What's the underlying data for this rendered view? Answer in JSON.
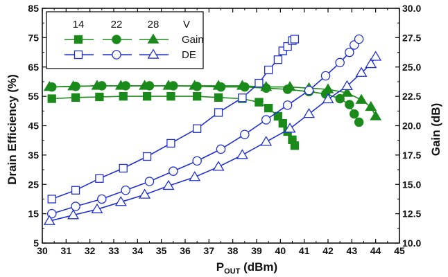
{
  "chart_data": {
    "type": "line",
    "title": "",
    "xlabel": {
      "main": "P",
      "sub": "OUT",
      "unit": " (dBm)"
    },
    "ylabel_left": "Drain Efficiency (%)",
    "ylabel_right": "Gain (dB)",
    "xlim": [
      30,
      45
    ],
    "ylim_left": [
      5,
      85
    ],
    "ylim_right": [
      10,
      30
    ],
    "x_ticks": [
      "30",
      "31",
      "32",
      "33",
      "34",
      "35",
      "36",
      "37",
      "38",
      "39",
      "40",
      "41",
      "42",
      "43",
      "44",
      "45"
    ],
    "y_left_ticks": [
      "5",
      "15",
      "25",
      "35",
      "45",
      "55",
      "65",
      "75",
      "85"
    ],
    "y_right_ticks": [
      "10.0",
      "12.5",
      "15.0",
      "17.5",
      "20.0",
      "22.5",
      "25.0",
      "27.5",
      "30.0"
    ],
    "grid": false,
    "colors": {
      "gain": "#1a8a1a",
      "de": "#1f2fd0"
    },
    "legend": {
      "placement": "top-left",
      "headers": [
        "14",
        "22",
        "28",
        "V"
      ],
      "rows": [
        "Gain",
        "DE"
      ]
    },
    "series": [
      {
        "voltage": "14",
        "metric": "Gain",
        "axis": "right",
        "marker": "square",
        "filled": true,
        "x": [
          30.4,
          31.4,
          32.4,
          33.4,
          34.4,
          35.4,
          36.5,
          37.4,
          38.4,
          39.1,
          39.5,
          39.9,
          40.1,
          40.3,
          40.5,
          40.6
        ],
        "y": [
          22.3,
          22.4,
          22.45,
          22.5,
          22.5,
          22.5,
          22.5,
          22.4,
          22.3,
          22.0,
          21.5,
          20.8,
          20.2,
          19.5,
          18.8,
          18.3
        ]
      },
      {
        "voltage": "22",
        "metric": "Gain",
        "axis": "right",
        "marker": "circle",
        "filled": true,
        "x": [
          30.4,
          31.4,
          32.5,
          33.5,
          34.5,
          35.5,
          36.5,
          37.5,
          38.5,
          39.4,
          40.3,
          41.2,
          41.9,
          42.5,
          42.9,
          43.1,
          43.3
        ],
        "y": [
          23.3,
          23.35,
          23.4,
          23.4,
          23.4,
          23.4,
          23.35,
          23.3,
          23.3,
          23.2,
          23.1,
          22.9,
          22.7,
          22.3,
          21.8,
          21.0,
          20.3
        ]
      },
      {
        "voltage": "28",
        "metric": "Gain",
        "axis": "right",
        "marker": "triangle",
        "filled": true,
        "x": [
          30.3,
          31.3,
          32.3,
          33.3,
          34.3,
          35.3,
          36.4,
          37.4,
          38.4,
          39.4,
          40.4,
          41.2,
          42.0,
          42.8,
          43.4,
          43.8,
          44.0
        ],
        "y": [
          23.3,
          23.35,
          23.4,
          23.4,
          23.4,
          23.4,
          23.4,
          23.4,
          23.4,
          23.3,
          23.3,
          23.2,
          23.1,
          22.8,
          22.2,
          21.6,
          20.8
        ]
      },
      {
        "voltage": "14",
        "metric": "DE",
        "axis": "left",
        "marker": "square",
        "filled": false,
        "x": [
          30.4,
          31.4,
          32.4,
          33.4,
          34.4,
          35.4,
          36.5,
          37.4,
          38.4,
          39.1,
          39.5,
          39.9,
          40.1,
          40.3,
          40.5,
          40.6
        ],
        "y": [
          20,
          23,
          27,
          30.5,
          34.5,
          39,
          44,
          49.5,
          54.5,
          59.5,
          64,
          67.5,
          70.5,
          72,
          74,
          74.5
        ]
      },
      {
        "voltage": "22",
        "metric": "DE",
        "axis": "left",
        "marker": "circle",
        "filled": false,
        "x": [
          30.4,
          31.4,
          32.5,
          33.5,
          34.5,
          35.5,
          36.5,
          37.5,
          38.5,
          39.4,
          40.3,
          41.2,
          41.9,
          42.5,
          42.9,
          43.1,
          43.3
        ],
        "y": [
          15,
          17.5,
          20,
          23,
          26,
          29.5,
          33,
          37,
          42,
          47,
          52,
          57,
          62,
          66.5,
          70,
          72.5,
          74.5
        ]
      },
      {
        "voltage": "28",
        "metric": "DE",
        "axis": "left",
        "marker": "triangle",
        "filled": false,
        "x": [
          30.3,
          31.3,
          32.3,
          33.3,
          34.3,
          35.3,
          36.4,
          37.4,
          38.4,
          39.4,
          40.4,
          41.2,
          42.0,
          42.8,
          43.4,
          43.8,
          44.0
        ],
        "y": [
          12.5,
          14.5,
          16.5,
          19,
          21.5,
          24.5,
          27.5,
          31,
          35,
          39.5,
          44,
          49,
          54,
          58.5,
          63,
          66,
          68.5
        ]
      }
    ]
  }
}
